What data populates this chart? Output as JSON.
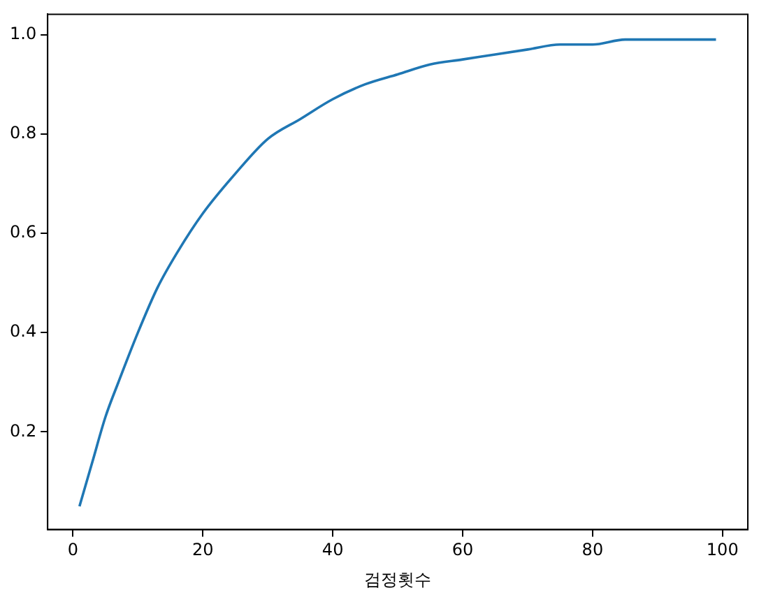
{
  "chart_data": {
    "type": "line",
    "xlabel": "검정횟수",
    "x": [
      1,
      3,
      5,
      7,
      10,
      13,
      16,
      20,
      25,
      30,
      35,
      40,
      45,
      50,
      55,
      60,
      65,
      70,
      75,
      80,
      85,
      90,
      95,
      99
    ],
    "series": [
      {
        "color": "#1f77b4",
        "values": [
          0.05,
          0.14,
          0.23,
          0.3,
          0.4,
          0.49,
          0.56,
          0.64,
          0.72,
          0.79,
          0.83,
          0.87,
          0.9,
          0.92,
          0.94,
          0.95,
          0.96,
          0.97,
          0.98,
          0.98,
          0.99,
          0.99,
          0.99,
          0.99
        ]
      }
    ],
    "xlim": [
      -3.9,
      103.9
    ],
    "ylim": [
      0.003,
      1.041
    ],
    "xticks": [
      0,
      20,
      40,
      60,
      80,
      100
    ],
    "yticks": [
      {
        "value": 0.2,
        "label": "0.2"
      },
      {
        "value": 0.4,
        "label": "0.4"
      },
      {
        "value": 0.6,
        "label": "0.6"
      },
      {
        "value": 0.8,
        "label": "0.8"
      },
      {
        "value": 1.0,
        "label": "1.0"
      }
    ],
    "grid": false,
    "legend": false,
    "marker": "none",
    "line_style": "solid"
  }
}
